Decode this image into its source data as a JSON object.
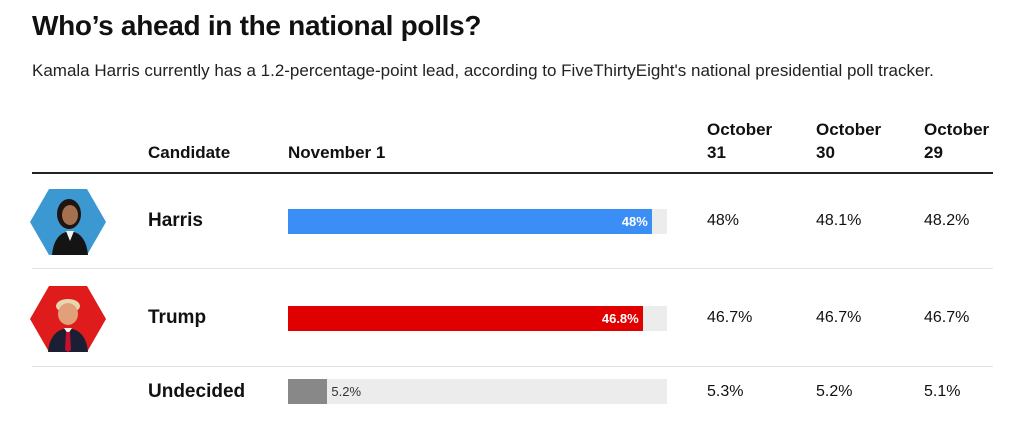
{
  "title": "Who’s ahead in the national polls?",
  "subtitle": "Kamala Harris currently has a 1.2-percentage-point lead, according to FiveThirtyEight's national presidential poll tracker.",
  "headers": {
    "candidate": "Candidate",
    "current": "November 1",
    "prev": [
      "October 31",
      "October 30",
      "October 29"
    ]
  },
  "chart_data": {
    "type": "bar",
    "title": "Who’s ahead in the national polls?",
    "xlim": [
      0,
      100
    ],
    "unit": "%",
    "categories": [
      "Harris",
      "Trump",
      "Undecided"
    ],
    "series": [
      {
        "name": "November 1",
        "values": [
          48,
          46.8,
          5.2
        ]
      },
      {
        "name": "October 31",
        "values": [
          48,
          46.7,
          5.3
        ]
      },
      {
        "name": "October 30",
        "values": [
          48.1,
          46.7,
          5.2
        ]
      },
      {
        "name": "October 29",
        "values": [
          48.2,
          46.7,
          5.1
        ]
      }
    ],
    "colors": [
      "#3b8ef5",
      "#e00000",
      "#888888"
    ],
    "track_color": "#ececec"
  },
  "rows": [
    {
      "name": "Harris",
      "current_label": "48%",
      "prev": [
        "48%",
        "48.1%",
        "48.2%"
      ],
      "has_photo": true,
      "hex_color": "#3b98d1"
    },
    {
      "name": "Trump",
      "current_label": "46.8%",
      "prev": [
        "46.7%",
        "46.7%",
        "46.7%"
      ],
      "has_photo": true,
      "hex_color": "#e01b1b"
    },
    {
      "name": "Undecided",
      "current_label": "5.2%",
      "prev": [
        "5.3%",
        "5.2%",
        "5.1%"
      ],
      "has_photo": false
    }
  ]
}
